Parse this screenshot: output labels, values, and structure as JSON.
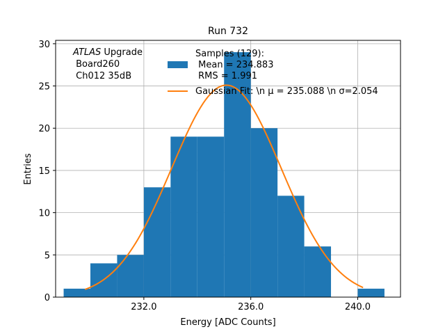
{
  "chart_data": {
    "type": "bar",
    "title": "Run 732",
    "xlabel": "Energy [ADC Counts]",
    "ylabel": "Entries",
    "xlim": [
      228.7,
      241.6
    ],
    "ylim": [
      0,
      30.4
    ],
    "grid": true,
    "x_ticks": [
      232.0,
      236.0,
      240.0
    ],
    "x_tick_labels": [
      "232.0",
      "236.0",
      "240.0"
    ],
    "y_ticks": [
      0,
      5,
      10,
      15,
      20,
      25,
      30
    ],
    "y_tick_labels": [
      "0",
      "5",
      "10",
      "15",
      "20",
      "25",
      "30"
    ],
    "bin_edges": [
      229.0,
      230.0,
      231.0,
      232.0,
      233.0,
      234.0,
      235.0,
      236.0,
      237.0,
      238.0,
      239.0,
      240.0,
      241.0
    ],
    "counts": [
      1,
      4,
      5,
      13,
      19,
      19,
      29,
      20,
      12,
      6,
      0,
      1
    ],
    "bar_color": "#1f77b4",
    "fit": {
      "type": "gaussian",
      "mu": 235.088,
      "sigma": 2.054,
      "amplitude": 25.1,
      "x_range": [
        229.8,
        240.2
      ],
      "color": "#ff7f0e"
    },
    "annotation": {
      "italic": "ATLAS",
      "line1_rest": " Upgrade",
      "line2": " Board260",
      "line3": " Ch012 35dB"
    },
    "legend": {
      "position": "top-center",
      "samples_line1": "Samples (129):",
      "samples_line2": " Mean = 234.883",
      "samples_line3": " RMS = 1.991",
      "fit_label": "Gaussian Fit: \\n μ = 235.088 \\n σ=2.054"
    }
  }
}
